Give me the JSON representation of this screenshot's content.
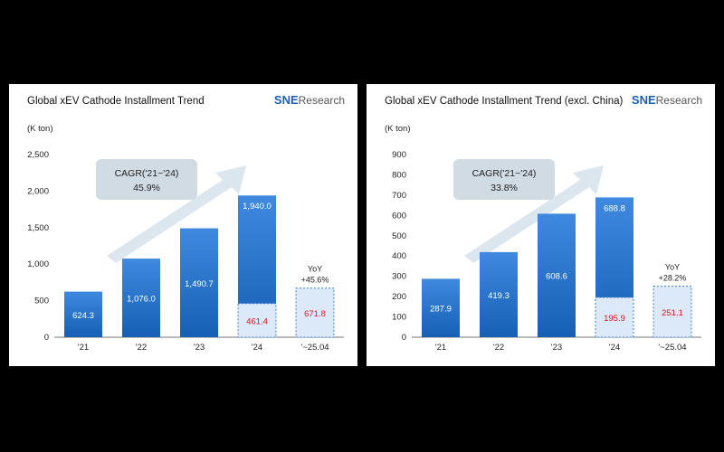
{
  "colors": {
    "bar_top": "#3f8ae0",
    "bar_bottom": "#155fb5",
    "dashed_fill": "#dbe9f8",
    "dashed_border": "#3d7fd0",
    "red_value": "#e0141e",
    "cagr_box": "#d0dbe4",
    "arrow": "#dce6ee"
  },
  "logo": {
    "brand": "SNE",
    "suffix": "Research"
  },
  "chart_data": [
    {
      "type": "bar",
      "title": "Global xEV Cathode Installment Trend",
      "unit": "(K ton)",
      "categories": [
        "'21",
        "'22",
        "'23",
        "'24",
        "'~25.04"
      ],
      "values": [
        624.3,
        1076.0,
        1490.7,
        1940.0,
        671.8
      ],
      "value_labels": [
        "624.3",
        "1,076.0",
        "1,490.7",
        "1,940.0",
        "671.8"
      ],
      "partial_segment": {
        "category": "'24",
        "value": 461.4,
        "label": "461.4"
      },
      "yticks": [
        "0",
        "500",
        "1,000",
        "1,500",
        "2,000",
        "2,500"
      ],
      "ylim": [
        0,
        2500
      ],
      "cagr": {
        "label": "CAGR('21~'24)",
        "value": "45.9%"
      },
      "yoy": {
        "label": "YoY",
        "value": "+45.6%"
      }
    },
    {
      "type": "bar",
      "title": "Global xEV Cathode Installment Trend (excl. China)",
      "unit": "(K ton)",
      "categories": [
        "'21",
        "'22",
        "'23",
        "'24",
        "'~25.04"
      ],
      "values": [
        287.9,
        419.3,
        608.6,
        688.8,
        251.1
      ],
      "value_labels": [
        "287.9",
        "419.3",
        "608.6",
        "688.8",
        "251.1"
      ],
      "partial_segment": {
        "category": "'24",
        "value": 195.9,
        "label": "195.9"
      },
      "yticks": [
        "0",
        "100",
        "200",
        "300",
        "400",
        "500",
        "600",
        "700",
        "800",
        "900"
      ],
      "ylim": [
        0,
        900
      ],
      "cagr": {
        "label": "CAGR('21~'24)",
        "value": "33.8%"
      },
      "yoy": {
        "label": "YoY",
        "value": "+28.2%"
      }
    }
  ]
}
